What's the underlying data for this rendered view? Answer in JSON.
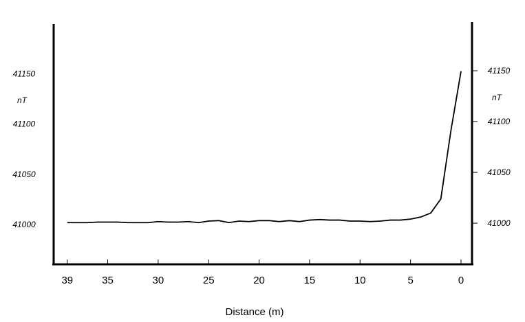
{
  "chart_data": {
    "type": "line",
    "x_label": "Distance (m)",
    "y_label": "nT",
    "y2_label": "nT",
    "x": [
      39,
      38,
      37,
      36,
      35,
      34,
      33,
      32,
      31,
      30,
      29,
      28,
      27,
      26,
      25,
      24,
      23,
      22,
      21,
      20,
      19,
      18,
      17,
      16,
      15,
      14,
      13,
      12,
      11,
      10,
      9,
      8,
      7,
      6,
      5,
      4,
      3,
      2,
      1,
      0
    ],
    "values": [
      41002.5,
      41002.5,
      41002.5,
      41003,
      41003,
      41003,
      41002.5,
      41002.5,
      41002.5,
      41003.5,
      41003,
      41003,
      41003.5,
      41002.5,
      41004,
      41004.5,
      41002.5,
      41004,
      41003.5,
      41004.5,
      41004.5,
      41003.5,
      41004.5,
      41003.5,
      41005,
      41005.5,
      41005,
      41005,
      41004,
      41004,
      41003.5,
      41004,
      41005,
      41005,
      41006,
      41008,
      41012,
      41026,
      41094,
      41153
    ],
    "color": "#000000",
    "xlim": [
      40.35,
      -1.09
    ],
    "xticks": [
      39,
      35,
      30,
      25,
      20,
      15,
      10,
      5,
      0
    ],
    "ylim": [
      40961,
      41200
    ],
    "yticks": [
      41000,
      41050,
      41100,
      41150
    ],
    "y2lim": [
      40959.5,
      41198
    ],
    "y2ticks": [
      41000,
      41050,
      41100,
      41150
    ]
  }
}
